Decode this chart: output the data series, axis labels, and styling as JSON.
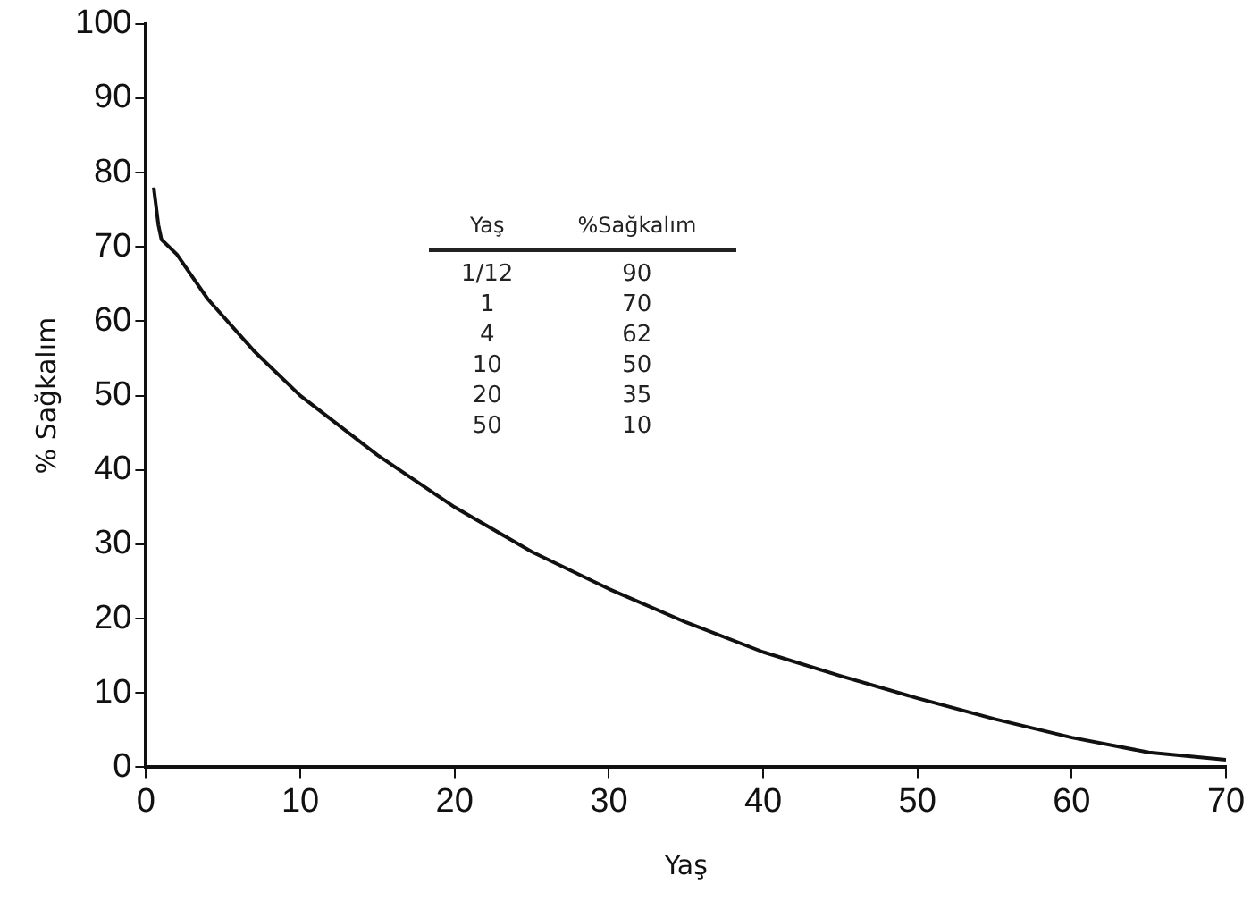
{
  "chart_data": {
    "type": "line",
    "xlabel": "Yaş",
    "ylabel": "% Sağkalım",
    "xlim": [
      0,
      70
    ],
    "ylim": [
      0,
      100
    ],
    "xticks": [
      0,
      10,
      20,
      30,
      40,
      50,
      60,
      70
    ],
    "yticks": [
      0,
      10,
      20,
      30,
      40,
      50,
      60,
      70,
      80,
      90,
      100
    ],
    "grid": false,
    "legend": false,
    "marker": "none",
    "line_style": "solid",
    "series": [
      {
        "color": "#111111",
        "x": [
          0.5,
          0.8,
          1,
          2,
          4,
          7,
          10,
          15,
          20,
          25,
          30,
          35,
          40,
          45,
          50,
          55,
          60,
          65,
          70
        ],
        "values": [
          78,
          73,
          71,
          69,
          63,
          56,
          50,
          42,
          35,
          29,
          24,
          19.5,
          15.5,
          12.3,
          9.3,
          6.5,
          4,
          2,
          1
        ]
      }
    ],
    "annotations": [
      "Yaş",
      "%Sağkalım",
      "1/12",
      "90",
      "1",
      "70",
      "4",
      "62",
      "10",
      "50",
      "20",
      "35",
      "50",
      "10"
    ]
  }
}
